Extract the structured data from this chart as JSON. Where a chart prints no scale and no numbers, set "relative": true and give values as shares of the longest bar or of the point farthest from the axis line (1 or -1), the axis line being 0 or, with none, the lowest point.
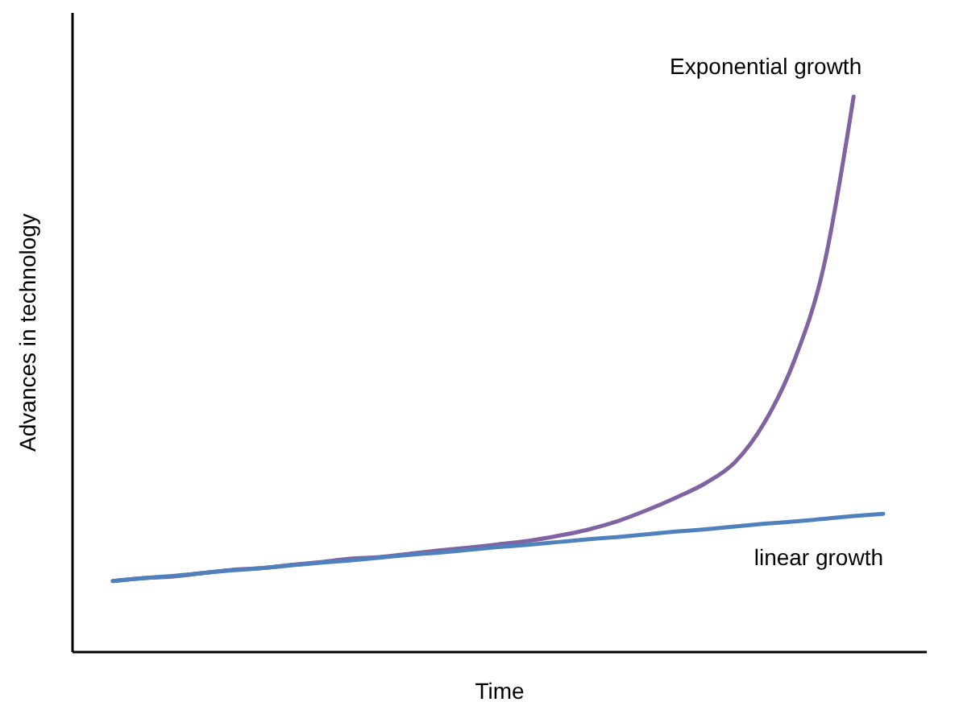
{
  "chart_data": {
    "type": "line",
    "relative": true,
    "xlabel": "Time",
    "ylabel": "Advances in technology",
    "categories": [
      null,
      null,
      null,
      null,
      null,
      null,
      null,
      null,
      null,
      null,
      null,
      null,
      null,
      null,
      null,
      null,
      null,
      null,
      null,
      null,
      null,
      null,
      null,
      null,
      null,
      null,
      null
    ],
    "series": [
      {
        "name": "Exponential growth",
        "color": "#8064a2",
        "values": [
          0.128,
          0.133,
          0.136,
          0.142,
          0.148,
          0.151,
          0.157,
          0.162,
          0.168,
          0.171,
          0.177,
          0.183,
          0.188,
          0.194,
          0.2,
          0.209,
          0.22,
          0.235,
          0.255,
          0.278,
          0.304,
          0.342,
          0.414,
          0.525,
          0.696,
          1,
          null
        ]
      },
      {
        "name": "linear growth",
        "color": "#4f81bd",
        "values": [
          0.128,
          0.133,
          0.137,
          0.142,
          0.147,
          0.151,
          0.156,
          0.161,
          0.165,
          0.17,
          0.175,
          0.179,
          0.184,
          0.189,
          0.193,
          0.198,
          0.203,
          0.207,
          0.212,
          0.217,
          0.221,
          0.226,
          0.231,
          0.235,
          0.24,
          0.245,
          0.249
        ]
      }
    ],
    "marker": "none",
    "line_style": "solid"
  }
}
